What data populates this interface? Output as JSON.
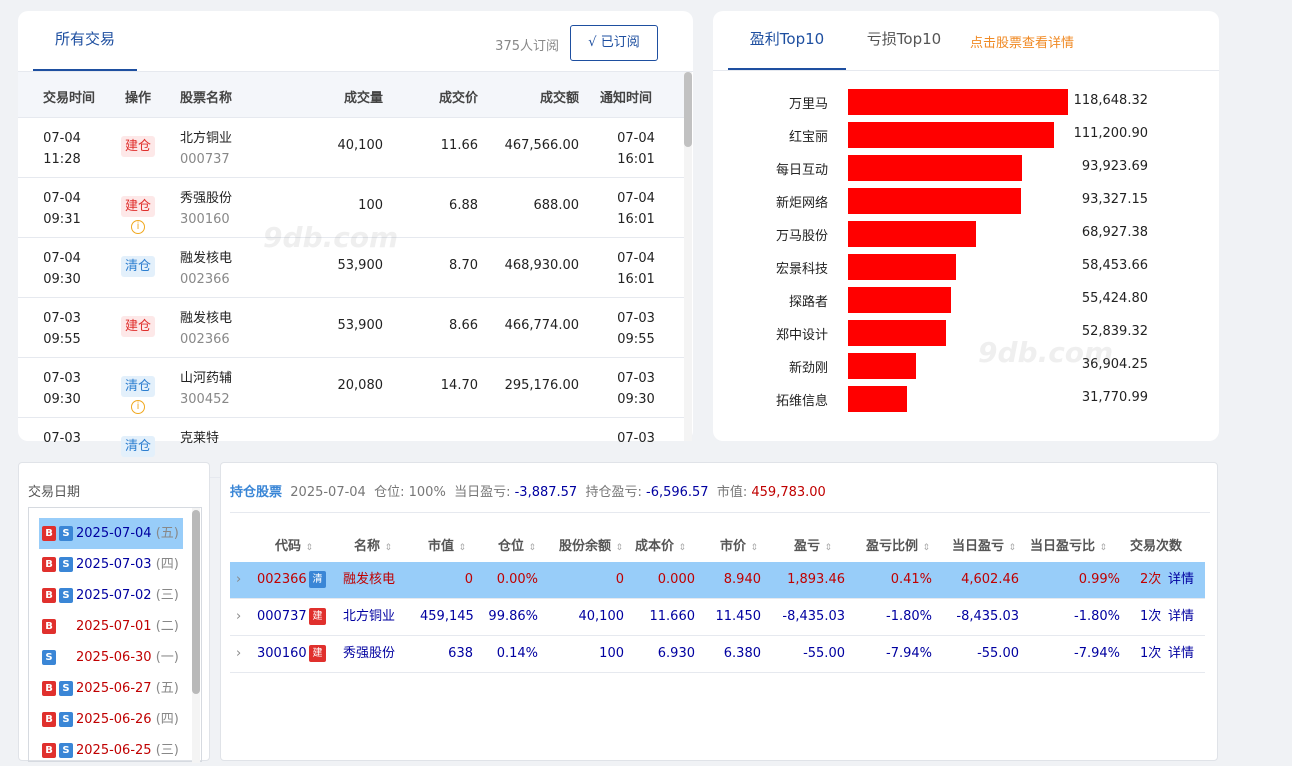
{
  "trades": {
    "tab_all": "所有交易",
    "subscriber_count": "375人订阅",
    "subscribe_button": "√ 已订阅",
    "columns": [
      "交易时间",
      "操作",
      "股票名称",
      "成交量",
      "成交价",
      "成交额",
      "通知时间"
    ],
    "rows": [
      {
        "date": "07-04",
        "time": "11:28",
        "op": "建仓",
        "op_type": "build",
        "name": "北方铜业",
        "code": "000737",
        "volume": "40,100",
        "price": "11.66",
        "amount": "467,566.00",
        "n_date": "07-04",
        "n_time": "16:01",
        "info": false
      },
      {
        "date": "07-04",
        "time": "09:31",
        "op": "建仓",
        "op_type": "build",
        "name": "秀强股份",
        "code": "300160",
        "volume": "100",
        "price": "6.88",
        "amount": "688.00",
        "n_date": "07-04",
        "n_time": "16:01",
        "info": true
      },
      {
        "date": "07-04",
        "time": "09:30",
        "op": "清仓",
        "op_type": "clear",
        "name": "融发核电",
        "code": "002366",
        "volume": "53,900",
        "price": "8.70",
        "amount": "468,930.00",
        "n_date": "07-04",
        "n_time": "16:01",
        "info": false
      },
      {
        "date": "07-03",
        "time": "09:55",
        "op": "建仓",
        "op_type": "build",
        "name": "融发核电",
        "code": "002366",
        "volume": "53,900",
        "price": "8.66",
        "amount": "466,774.00",
        "n_date": "07-03",
        "n_time": "09:55",
        "info": false
      },
      {
        "date": "07-03",
        "time": "09:30",
        "op": "清仓",
        "op_type": "clear",
        "name": "山河药辅",
        "code": "300452",
        "volume": "20,080",
        "price": "14.70",
        "amount": "295,176.00",
        "n_date": "07-03",
        "n_time": "09:30",
        "info": true
      },
      {
        "date": "07-03",
        "time": "",
        "op": "清仓",
        "op_type": "clear",
        "name": "克莱特",
        "code": "",
        "volume": "",
        "price": "",
        "amount": "",
        "n_date": "07-03",
        "n_time": "",
        "info": false
      }
    ],
    "info_icon": "i"
  },
  "top10": {
    "tab_profit": "盈利Top10",
    "tab_loss": "亏损Top10",
    "hint": "点击股票查看详情",
    "bar_color": "#ff0000",
    "max_value": 118648.32,
    "rows": [
      {
        "name": "万里马",
        "value": 118648.32,
        "label": "118,648.32"
      },
      {
        "name": "红宝丽",
        "value": 111200.9,
        "label": "111,200.90"
      },
      {
        "name": "每日互动",
        "value": 93923.69,
        "label": "93,923.69"
      },
      {
        "name": "新炬网络",
        "value": 93327.15,
        "label": "93,327.15"
      },
      {
        "name": "万马股份",
        "value": 68927.38,
        "label": "68,927.38"
      },
      {
        "name": "宏景科技",
        "value": 58453.66,
        "label": "58,453.66"
      },
      {
        "name": "探路者",
        "value": 55424.8,
        "label": "55,424.80"
      },
      {
        "name": "郑中设计",
        "value": 52839.32,
        "label": "52,839.32"
      },
      {
        "name": "新劲刚",
        "value": 36904.25,
        "label": "36,904.25"
      },
      {
        "name": "拓维信息",
        "value": 31770.99,
        "label": "31,770.99"
      }
    ]
  },
  "dates": {
    "label": "交易日期",
    "rows": [
      {
        "b": true,
        "s": true,
        "date": "2025-07-04",
        "weekday": "(五)",
        "selected": true
      },
      {
        "b": true,
        "s": true,
        "date": "2025-07-03",
        "weekday": "(四)",
        "selected": false
      },
      {
        "b": true,
        "s": true,
        "date": "2025-07-02",
        "weekday": "(三)",
        "selected": false
      },
      {
        "b": true,
        "s": false,
        "date": "2025-07-01",
        "weekday": "(二)",
        "selected": false
      },
      {
        "b": false,
        "s": true,
        "date": "2025-06-30",
        "weekday": "(一)",
        "selected": false
      },
      {
        "b": true,
        "s": true,
        "date": "2025-06-27",
        "weekday": "(五)",
        "selected": false
      },
      {
        "b": true,
        "s": true,
        "date": "2025-06-26",
        "weekday": "(四)",
        "selected": false
      },
      {
        "b": true,
        "s": true,
        "date": "2025-06-25",
        "weekday": "(三)",
        "selected": false
      }
    ],
    "badge_b": "B",
    "badge_s": "S"
  },
  "holdings": {
    "title": "持仓股票",
    "date": "2025-07-04",
    "position_label": "仓位:",
    "position_value": "100%",
    "daily_pl_label": "当日盈亏:",
    "daily_pl_value": "-3,887.57",
    "hold_pl_label": "持仓盈亏:",
    "hold_pl_value": "-6,596.57",
    "mv_label": "市值:",
    "mv_value": "459,783.00",
    "columns": [
      "代码",
      "名称",
      "市值",
      "仓位",
      "股份余额",
      "成本价",
      "市价",
      "盈亏",
      "盈亏比例",
      "当日盈亏",
      "当日盈亏比",
      "交易次数"
    ],
    "sort_glyph": "⇕",
    "rows": [
      {
        "code": "002366",
        "tag": "清",
        "tag_type": "qing",
        "name": "融发核电",
        "mv": "0",
        "pos": "0.00%",
        "shares": "0",
        "cost": "0.000",
        "price": "8.940",
        "pl": "1,893.46",
        "pl_pct": "0.41%",
        "day_pl": "4,602.46",
        "day_pct": "0.99%",
        "count": "2次",
        "detail": "详情",
        "selected": true,
        "sign": "pos"
      },
      {
        "code": "000737",
        "tag": "建",
        "tag_type": "jian",
        "name": "北方铜业",
        "mv": "459,145",
        "pos": "99.86%",
        "shares": "40,100",
        "cost": "11.660",
        "price": "11.450",
        "pl": "-8,435.03",
        "pl_pct": "-1.80%",
        "day_pl": "-8,435.03",
        "day_pct": "-1.80%",
        "count": "1次",
        "detail": "详情",
        "selected": false,
        "sign": "neg"
      },
      {
        "code": "300160",
        "tag": "建",
        "tag_type": "jian",
        "name": "秀强股份",
        "mv": "638",
        "pos": "0.14%",
        "shares": "100",
        "cost": "6.930",
        "price": "6.380",
        "pl": "-55.00",
        "pl_pct": "-7.94%",
        "day_pl": "-55.00",
        "day_pct": "-7.94%",
        "count": "1次",
        "detail": "详情",
        "selected": false,
        "sign": "neg"
      }
    ]
  },
  "watermark": "9db.com"
}
